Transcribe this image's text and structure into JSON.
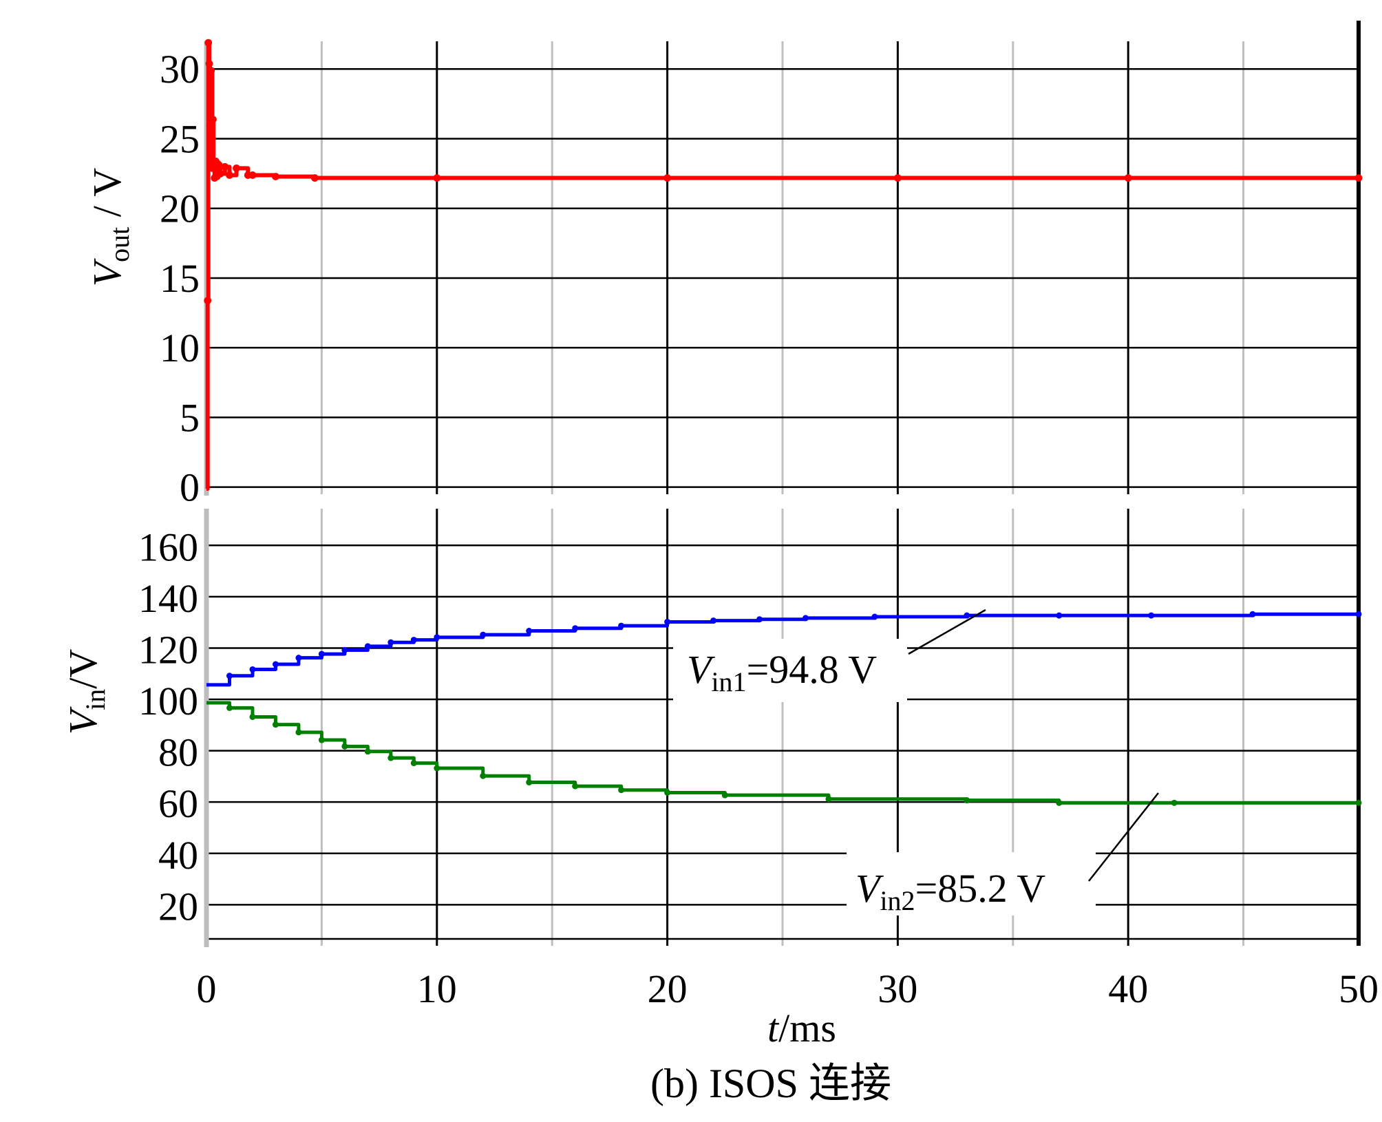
{
  "caption": "(b) ISOS 连接",
  "colors": {
    "vout": "#ff0000",
    "vin1": "#0000ff",
    "vin2": "#008000",
    "grid_major": "#000000",
    "grid_minor": "#bfbfbf"
  },
  "chart_data": [
    {
      "type": "line",
      "panel": "top",
      "xlabel": "",
      "ylabel": {
        "main": "V",
        "sub": "out",
        "unit": " / V"
      },
      "xlim": [
        0,
        50
      ],
      "ylim": [
        -1.5,
        31
      ],
      "yticks": [
        0,
        5,
        10,
        15,
        20,
        25,
        30
      ],
      "ytick_labels": [
        "0",
        "5",
        "10",
        "15",
        "20",
        "25",
        "30"
      ],
      "series": [
        {
          "color": "#ff0000",
          "x": [
            0,
            0.05,
            0.08,
            0.12,
            0.15,
            0.2,
            0.25,
            0.28,
            0.3,
            0.35,
            0.4,
            0.45,
            0.5,
            0.6,
            0.8,
            1.0,
            1.3,
            1.8,
            2.0,
            3.0,
            4.7,
            10,
            20,
            30,
            40,
            50
          ],
          "y": [
            -1.5,
            12,
            30.5,
            29,
            24.5,
            28.5,
            21.5,
            25,
            22,
            20.8,
            22,
            20.9,
            21.8,
            21.1,
            21.6,
            21.0,
            21.5,
            21.0,
            21.0,
            20.9,
            20.8,
            20.8,
            20.8,
            20.8,
            20.8,
            20.8
          ]
        }
      ]
    },
    {
      "type": "line",
      "panel": "bottom",
      "xlabel": {
        "main": "t",
        "unit": "/ms"
      },
      "ylabel": {
        "main": "V",
        "sub": "in",
        "unit": "/V"
      },
      "xlim": [
        0,
        50
      ],
      "ylim": [
        4,
        170
      ],
      "xticks": [
        0,
        10,
        20,
        30,
        40,
        50
      ],
      "xtick_labels": [
        "0",
        "10",
        "20",
        "30",
        "40",
        "50"
      ],
      "yticks": [
        20,
        40,
        60,
        80,
        100,
        120,
        140,
        160
      ],
      "ytick_labels": [
        "20",
        "40",
        "60",
        "80",
        "100",
        "120",
        "140",
        "160"
      ],
      "series": [
        {
          "color": "#0000ff",
          "x": [
            0,
            1,
            2,
            3,
            4,
            5,
            6,
            7,
            8,
            9,
            10,
            12,
            14,
            16,
            18,
            20,
            22,
            24,
            26,
            29,
            33,
            37,
            41,
            45.4,
            50
          ],
          "y": [
            103,
            106.5,
            109,
            111,
            113.5,
            115,
            116.5,
            118,
            119.5,
            120.5,
            121.5,
            122.5,
            124,
            125,
            126,
            127.5,
            128,
            128.5,
            129,
            129.5,
            130,
            130,
            130,
            130.5,
            130.5
          ]
        },
        {
          "color": "#008000",
          "x": [
            0,
            1,
            2,
            3,
            4,
            5,
            6,
            7,
            8,
            9,
            10,
            12,
            14,
            16,
            18,
            20,
            22.5,
            27,
            33,
            37,
            42,
            50
          ],
          "y": [
            96,
            94,
            90.5,
            87.5,
            84.5,
            81.5,
            79,
            77,
            74.5,
            72.5,
            70.5,
            67.5,
            65,
            63.5,
            62,
            61,
            60,
            58.5,
            58,
            57,
            57,
            57
          ]
        }
      ],
      "annotations": [
        {
          "main": "V",
          "sub": "in1",
          "value": "=94.8 V"
        },
        {
          "main": "V",
          "sub": "in2",
          "value": "=85.2 V"
        }
      ]
    }
  ]
}
